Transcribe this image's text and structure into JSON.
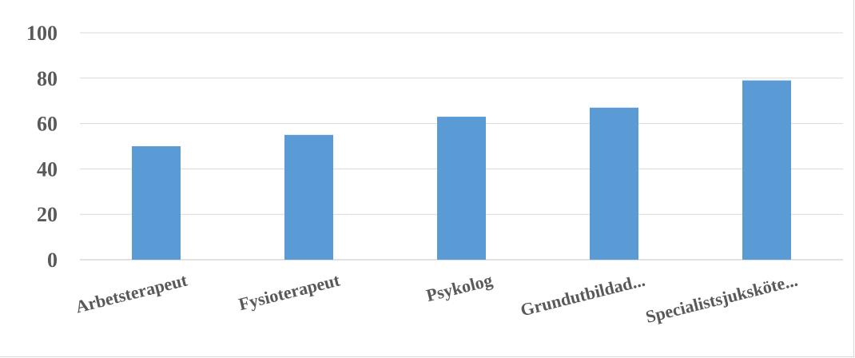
{
  "chart_data": {
    "type": "bar",
    "categories": [
      "Arbetsterapeut",
      "Fysioterapeut",
      "Psykolog",
      "Grundutbildad...",
      "Specialistsjuksköte..."
    ],
    "values": [
      50,
      55,
      63,
      67,
      79
    ],
    "title": "",
    "xlabel": "",
    "ylabel": "",
    "ylim": [
      0,
      100
    ],
    "yticks": [
      0,
      20,
      40,
      60,
      80,
      100
    ],
    "grid": true,
    "legend": "none",
    "colors": {
      "bar": "#5b9bd5",
      "grid": "#d9d9d9",
      "text": "#595959"
    }
  }
}
